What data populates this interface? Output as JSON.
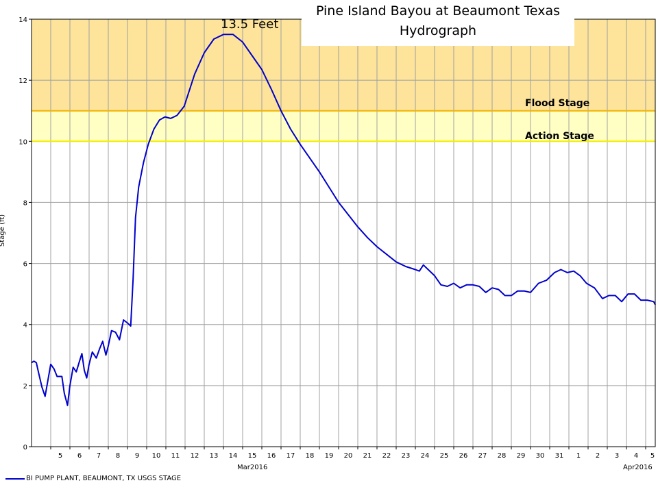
{
  "chart_data": {
    "type": "line",
    "title": [
      "Pine Island Bayou at Beaumont Texas",
      "Hydrograph"
    ],
    "ylabel": "Stage (ft)",
    "ylim": [
      0,
      14
    ],
    "yticks": [
      0,
      2,
      4,
      6,
      8,
      10,
      12,
      14
    ],
    "x_range": [
      "2016-03-04",
      "2016-04-05T12:00"
    ],
    "xtick_labels": [
      {
        "date": "2016-03-05",
        "label": "5"
      },
      {
        "date": "2016-03-06",
        "label": "6"
      },
      {
        "date": "2016-03-07",
        "label": "7"
      },
      {
        "date": "2016-03-08",
        "label": "8"
      },
      {
        "date": "2016-03-09",
        "label": "9"
      },
      {
        "date": "2016-03-10",
        "label": "10"
      },
      {
        "date": "2016-03-11",
        "label": "11"
      },
      {
        "date": "2016-03-12",
        "label": "12"
      },
      {
        "date": "2016-03-13",
        "label": "13"
      },
      {
        "date": "2016-03-14",
        "label": "14"
      },
      {
        "date": "2016-03-15",
        "label": "15"
      },
      {
        "date": "2016-03-16",
        "label": "16"
      },
      {
        "date": "2016-03-17",
        "label": "17"
      },
      {
        "date": "2016-03-18",
        "label": "18"
      },
      {
        "date": "2016-03-19",
        "label": "19"
      },
      {
        "date": "2016-03-20",
        "label": "20"
      },
      {
        "date": "2016-03-21",
        "label": "21"
      },
      {
        "date": "2016-03-22",
        "label": "22"
      },
      {
        "date": "2016-03-23",
        "label": "23"
      },
      {
        "date": "2016-03-24",
        "label": "24"
      },
      {
        "date": "2016-03-25",
        "label": "25"
      },
      {
        "date": "2016-03-26",
        "label": "26"
      },
      {
        "date": "2016-03-27",
        "label": "27"
      },
      {
        "date": "2016-03-28",
        "label": "28"
      },
      {
        "date": "2016-03-29",
        "label": "29"
      },
      {
        "date": "2016-03-30",
        "label": "30"
      },
      {
        "date": "2016-03-31",
        "label": "31"
      },
      {
        "date": "2016-04-01",
        "label": "1"
      },
      {
        "date": "2016-04-02",
        "label": "2"
      },
      {
        "date": "2016-04-03",
        "label": "3"
      },
      {
        "date": "2016-04-04",
        "label": "4"
      },
      {
        "date": "2016-04-05",
        "label": "5"
      }
    ],
    "month_labels": [
      "Mar2016",
      "Apr2016"
    ],
    "grid": true,
    "legend_position": "bottom-left",
    "annotations": [
      {
        "text": "13.5 Feet",
        "date": "2016-03-14T12:00",
        "y": 13.5
      },
      {
        "text": "Flood Stage",
        "y": 11
      },
      {
        "text": "Action Stage",
        "y": 10
      }
    ],
    "bands": [
      {
        "from": 11,
        "to": 14,
        "color": "#fde49a"
      },
      {
        "from": 10,
        "to": 11,
        "color": "#ffffc4"
      }
    ],
    "threshold_lines": [
      {
        "y": 11,
        "color": "#f0b400"
      },
      {
        "y": 10,
        "color": "#f2ee00"
      }
    ],
    "series": [
      {
        "name": "BI PUMP PLANT, BEAUMONT, TX USGS STAGE",
        "color": "#0000cc",
        "points": [
          [
            "2016-03-04T00:00",
            2.75
          ],
          [
            "2016-03-04T03:00",
            2.8
          ],
          [
            "2016-03-04T06:00",
            2.75
          ],
          [
            "2016-03-04T09:00",
            2.4
          ],
          [
            "2016-03-04T13:00",
            1.95
          ],
          [
            "2016-03-04T17:00",
            1.65
          ],
          [
            "2016-03-04T21:00",
            2.25
          ],
          [
            "2016-03-05T00:00",
            2.7
          ],
          [
            "2016-03-05T04:00",
            2.55
          ],
          [
            "2016-03-05T08:00",
            2.3
          ],
          [
            "2016-03-05T11:00",
            2.3
          ],
          [
            "2016-03-05T14:00",
            2.3
          ],
          [
            "2016-03-05T17:00",
            1.75
          ],
          [
            "2016-03-05T21:00",
            1.35
          ],
          [
            "2016-03-06T00:00",
            2.0
          ],
          [
            "2016-03-06T04:00",
            2.6
          ],
          [
            "2016-03-06T08:00",
            2.45
          ],
          [
            "2016-03-06T12:00",
            2.8
          ],
          [
            "2016-03-06T15:00",
            3.05
          ],
          [
            "2016-03-06T18:00",
            2.5
          ],
          [
            "2016-03-06T21:00",
            2.25
          ],
          [
            "2016-03-07T00:00",
            2.7
          ],
          [
            "2016-03-07T04:00",
            3.1
          ],
          [
            "2016-03-07T09:00",
            2.9
          ],
          [
            "2016-03-07T13:00",
            3.2
          ],
          [
            "2016-03-07T17:00",
            3.45
          ],
          [
            "2016-03-07T21:00",
            3.0
          ],
          [
            "2016-03-08T00:00",
            3.3
          ],
          [
            "2016-03-08T04:00",
            3.8
          ],
          [
            "2016-03-08T09:00",
            3.75
          ],
          [
            "2016-03-08T14:00",
            3.5
          ],
          [
            "2016-03-08T19:00",
            4.15
          ],
          [
            "2016-03-09T00:00",
            4.05
          ],
          [
            "2016-03-09T04:00",
            3.95
          ],
          [
            "2016-03-09T07:00",
            5.5
          ],
          [
            "2016-03-09T10:00",
            7.5
          ],
          [
            "2016-03-09T14:00",
            8.5
          ],
          [
            "2016-03-09T20:00",
            9.3
          ],
          [
            "2016-03-10T02:00",
            9.9
          ],
          [
            "2016-03-10T09:00",
            10.4
          ],
          [
            "2016-03-10T16:00",
            10.7
          ],
          [
            "2016-03-10T23:00",
            10.8
          ],
          [
            "2016-03-11T06:00",
            10.75
          ],
          [
            "2016-03-11T14:00",
            10.85
          ],
          [
            "2016-03-11T23:00",
            11.15
          ],
          [
            "2016-03-12T12:00",
            12.2
          ],
          [
            "2016-03-13T00:00",
            12.9
          ],
          [
            "2016-03-13T12:00",
            13.35
          ],
          [
            "2016-03-14T00:00",
            13.5
          ],
          [
            "2016-03-14T12:00",
            13.5
          ],
          [
            "2016-03-15T00:00",
            13.25
          ],
          [
            "2016-03-15T12:00",
            12.8
          ],
          [
            "2016-03-16T00:00",
            12.35
          ],
          [
            "2016-03-16T12:00",
            11.7
          ],
          [
            "2016-03-17T00:00",
            11.0
          ],
          [
            "2016-03-17T12:00",
            10.4
          ],
          [
            "2016-03-18T00:00",
            9.9
          ],
          [
            "2016-03-18T12:00",
            9.45
          ],
          [
            "2016-03-19T00:00",
            9.0
          ],
          [
            "2016-03-19T12:00",
            8.5
          ],
          [
            "2016-03-20T00:00",
            8.0
          ],
          [
            "2016-03-20T12:00",
            7.6
          ],
          [
            "2016-03-21T00:00",
            7.2
          ],
          [
            "2016-03-21T12:00",
            6.85
          ],
          [
            "2016-03-22T00:00",
            6.55
          ],
          [
            "2016-03-22T12:00",
            6.3
          ],
          [
            "2016-03-23T00:00",
            6.05
          ],
          [
            "2016-03-23T12:00",
            5.9
          ],
          [
            "2016-03-24T00:00",
            5.8
          ],
          [
            "2016-03-24T05:00",
            5.75
          ],
          [
            "2016-03-24T10:00",
            5.95
          ],
          [
            "2016-03-24T16:00",
            5.8
          ],
          [
            "2016-03-25T00:00",
            5.6
          ],
          [
            "2016-03-25T08:00",
            5.3
          ],
          [
            "2016-03-25T16:00",
            5.25
          ],
          [
            "2016-03-26T00:00",
            5.35
          ],
          [
            "2016-03-26T08:00",
            5.2
          ],
          [
            "2016-03-26T16:00",
            5.3
          ],
          [
            "2016-03-27T00:00",
            5.3
          ],
          [
            "2016-03-27T08:00",
            5.25
          ],
          [
            "2016-03-27T16:00",
            5.05
          ],
          [
            "2016-03-28T00:00",
            5.2
          ],
          [
            "2016-03-28T08:00",
            5.15
          ],
          [
            "2016-03-28T16:00",
            4.95
          ],
          [
            "2016-03-29T00:00",
            4.95
          ],
          [
            "2016-03-29T08:00",
            5.1
          ],
          [
            "2016-03-29T16:00",
            5.1
          ],
          [
            "2016-03-30T00:00",
            5.05
          ],
          [
            "2016-03-30T10:00",
            5.35
          ],
          [
            "2016-03-30T20:00",
            5.45
          ],
          [
            "2016-03-31T06:00",
            5.7
          ],
          [
            "2016-03-31T14:00",
            5.8
          ],
          [
            "2016-03-31T22:00",
            5.7
          ],
          [
            "2016-04-01T06:00",
            5.75
          ],
          [
            "2016-04-01T14:00",
            5.6
          ],
          [
            "2016-04-01T22:00",
            5.35
          ],
          [
            "2016-04-02T08:00",
            5.2
          ],
          [
            "2016-04-02T18:00",
            4.85
          ],
          [
            "2016-04-03T02:00",
            4.95
          ],
          [
            "2016-04-03T10:00",
            4.95
          ],
          [
            "2016-04-03T18:00",
            4.75
          ],
          [
            "2016-04-04T02:00",
            5.0
          ],
          [
            "2016-04-04T10:00",
            5.0
          ],
          [
            "2016-04-04T18:00",
            4.8
          ],
          [
            "2016-04-05T02:00",
            4.8
          ],
          [
            "2016-04-05T10:00",
            4.75
          ],
          [
            "2016-04-05T12:00",
            4.65
          ]
        ]
      }
    ]
  }
}
